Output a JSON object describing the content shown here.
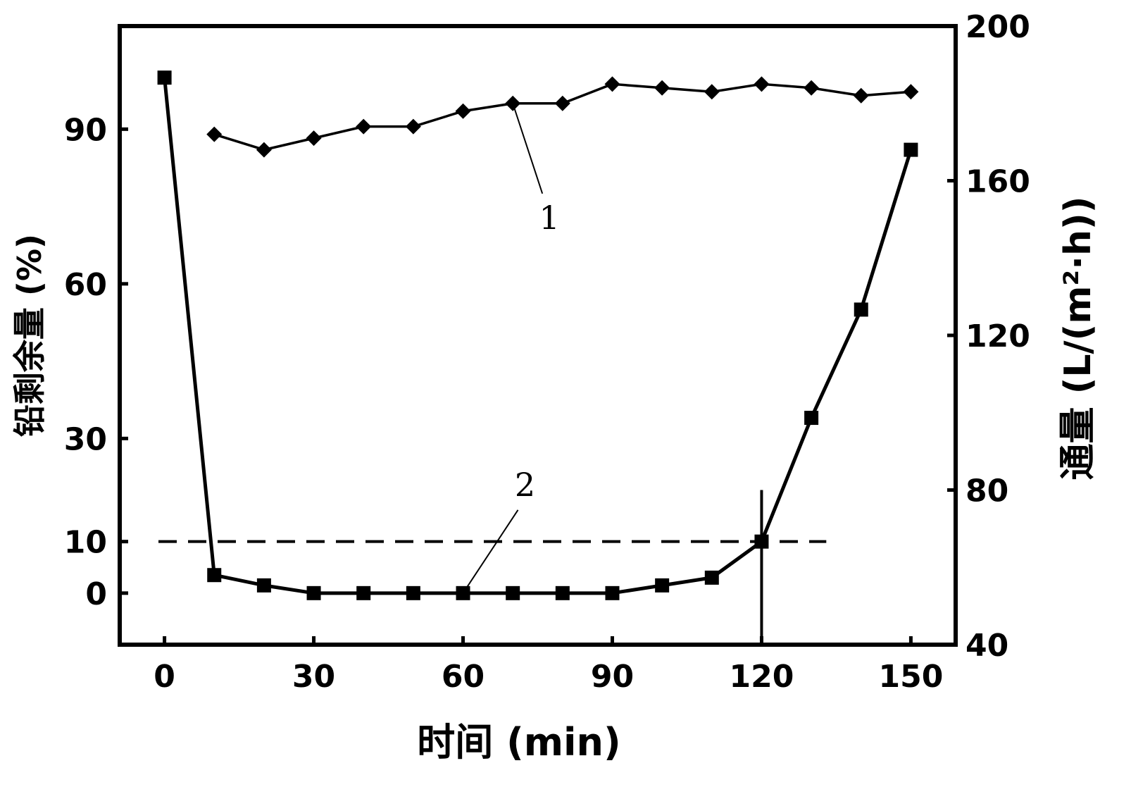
{
  "chart_data": {
    "type": "line",
    "title": "",
    "xlabel": "时间 (min)",
    "ylabel_left": "铅剩余量 (%)",
    "ylabel_right": "通量 (L/(m²·h))",
    "x_ticks": [
      0,
      30,
      60,
      90,
      120,
      150
    ],
    "x_range": [
      -9,
      159
    ],
    "y_left_ticks": [
      0,
      10,
      30,
      60,
      90
    ],
    "y_left_range": [
      -10,
      110
    ],
    "y_right_ticks": [
      40,
      80,
      120,
      160,
      200
    ],
    "y_right_range": [
      40,
      200
    ],
    "grid": false,
    "series": [
      {
        "name": "1",
        "axis": "right",
        "marker": "diamond",
        "x": [
          10,
          20,
          30,
          40,
          50,
          60,
          70,
          80,
          90,
          100,
          110,
          120,
          130,
          140,
          150
        ],
        "values": [
          172,
          168,
          171,
          174,
          174,
          178,
          180,
          180,
          185,
          184,
          183,
          185,
          184,
          182,
          183
        ]
      },
      {
        "name": "2",
        "axis": "left",
        "marker": "square",
        "x": [
          0,
          10,
          20,
          30,
          40,
          50,
          60,
          70,
          80,
          90,
          100,
          110,
          120,
          130,
          140,
          150
        ],
        "values": [
          100,
          3.5,
          1.5,
          0,
          0,
          0,
          0,
          0,
          0,
          0,
          1.5,
          3,
          10,
          34,
          55,
          86
        ]
      }
    ],
    "reference_line": {
      "axis": "left",
      "value": 10,
      "style": "dashed",
      "x_extent": [
        0,
        133
      ]
    },
    "marker_line": {
      "x": 120,
      "y_left_range": [
        -10,
        20
      ]
    },
    "annotations": [
      {
        "text": "1",
        "series": "1",
        "point_x": 70,
        "point_y": 180
      },
      {
        "text": "2",
        "series": "2",
        "point_x": 60,
        "point_y": 0
      }
    ]
  }
}
